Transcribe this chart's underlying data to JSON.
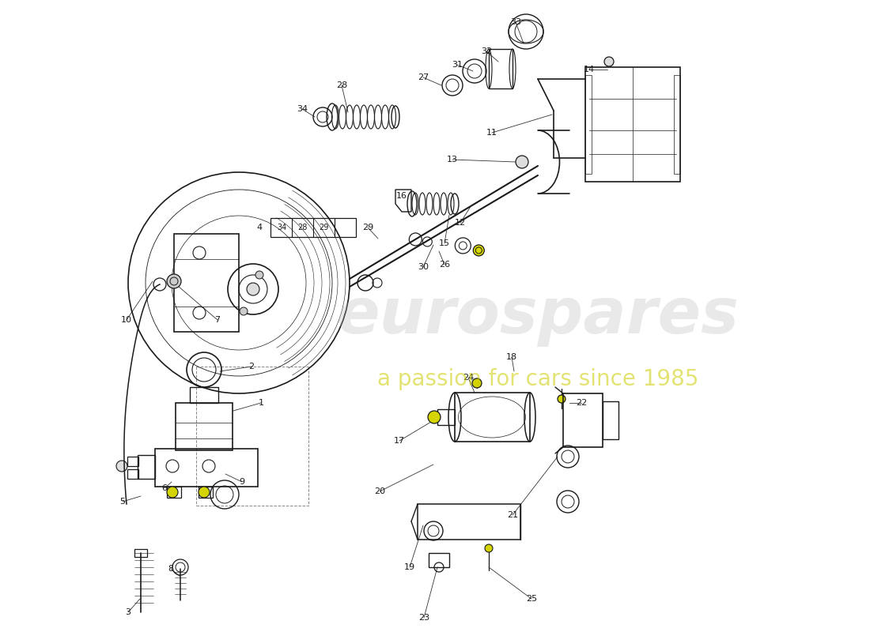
{
  "background_color": "#ffffff",
  "line_color": "#1a1a1a",
  "watermark_text1": "eurospares",
  "watermark_text2": "a passion for cars since 1985",
  "watermark_color": "#b8b8b8",
  "watermark_color2": "#cccc00"
}
